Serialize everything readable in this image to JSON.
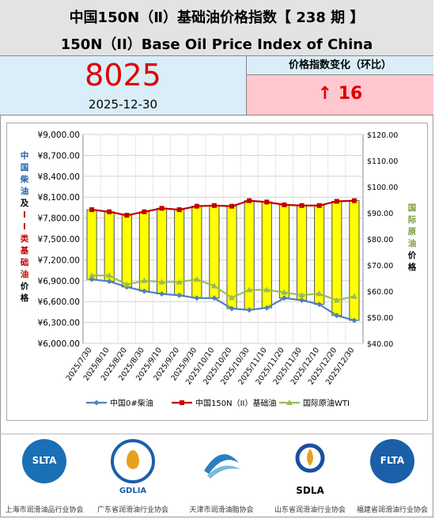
{
  "header": {
    "title_cn": "中国150N（Ⅱ）基础油价格指数【    238 期   】",
    "title_en": "150N（II）Base Oil Price Index of China"
  },
  "index_box": {
    "value": "8025",
    "date": "2025-12-30"
  },
  "change_box": {
    "label": "价格指数变化（环比）",
    "value": "↑ 16"
  },
  "colors": {
    "bar_fill": "#ffff00",
    "bar_stroke": "#555555",
    "china_diesel": "#4f81bd",
    "base_oil": "#c00000",
    "wti": "#9bbb59",
    "header_bg": "#e3e3e3",
    "index_bg": "#d9eef8",
    "change_bg": "#ffc7ce",
    "accent_red": "#e00000"
  },
  "chart_data": {
    "type": "bar",
    "categories": [
      "2025/7/30",
      "2025/8/10",
      "2025/8/20",
      "2025/8/30",
      "2025/9/10",
      "2025/9/20",
      "2025/9/30",
      "2025/10/10",
      "2025/10/20",
      "2025/10/30",
      "2025/11/10",
      "2025/11/20",
      "2025/11/30",
      "2025/12/10",
      "2025/12/20",
      "2025/12/30"
    ],
    "series": [
      {
        "name": "中国0#柴油",
        "axis": "left",
        "kind": "line",
        "values": [
          6920,
          6890,
          6810,
          6750,
          6710,
          6690,
          6650,
          6650,
          6500,
          6480,
          6510,
          6650,
          6620,
          6560,
          6400,
          6330
        ]
      },
      {
        "name": "中国150N（II）基础油",
        "axis": "left",
        "kind": "bar+line",
        "values": [
          7920,
          7890,
          7840,
          7890,
          7940,
          7920,
          7970,
          7980,
          7970,
          8050,
          8030,
          7990,
          7980,
          7980,
          8040,
          8050
        ]
      },
      {
        "name": "国际原油WTI",
        "axis": "right",
        "kind": "line",
        "values": [
          66,
          66,
          62.5,
          64,
          63.5,
          63.5,
          64.5,
          62,
          57.5,
          60.5,
          60.5,
          59.5,
          58.5,
          59,
          56.5,
          58
        ]
      }
    ],
    "y_left": {
      "min": 6000,
      "max": 9000,
      "step": 300,
      "ticks": [
        "¥6,000.00",
        "¥6,300.00",
        "¥6,600.00",
        "¥6,900.00",
        "¥7,200.00",
        "¥7,500.00",
        "¥7,800.00",
        "¥8,100.00",
        "¥8,400.00",
        "¥8,700.00",
        "¥9,000.00"
      ]
    },
    "y_right": {
      "min": 40,
      "max": 120,
      "step": 10,
      "ticks": [
        "$40.00",
        "$50.00",
        "$60.00",
        "$70.00",
        "$80.00",
        "$90.00",
        "$100.00",
        "$110.00",
        "$120.00"
      ]
    },
    "ylabel_left_parts": [
      {
        "text": "中国柴油",
        "color": "#1f5fa8"
      },
      {
        "text": "及",
        "color": "#000000"
      },
      {
        "text": "II类基础油",
        "color": "#c00000"
      },
      {
        "text": "价格",
        "color": "#000000"
      }
    ],
    "ylabel_right_parts": [
      {
        "text": "国际原油",
        "color": "#7a9a3a"
      },
      {
        "text": "价格",
        "color": "#000000"
      }
    ],
    "grid": true,
    "legend_position": "bottom"
  },
  "logos": [
    {
      "abbr": "SLTA",
      "name": "上海市润滑油品行业协会",
      "icon": "slta-logo-icon",
      "color": "#1a6fb5"
    },
    {
      "abbr": "GDLIA",
      "name": "广东省润滑油行业协会",
      "icon": "gdlia-logo-icon",
      "color": "#e8a020"
    },
    {
      "abbr": "",
      "name": "天津市润滑油脂协会",
      "icon": "tianjin-logo-icon",
      "color": "#2a7fc0"
    },
    {
      "abbr": "SDLA",
      "name": "山东省润滑油行业协会",
      "icon": "sdla-logo-icon",
      "color": "#1a4fa0"
    },
    {
      "abbr": "FLTA",
      "name": "福建省润滑油行业协会",
      "icon": "flta-logo-icon",
      "color": "#1a5fa8"
    }
  ]
}
